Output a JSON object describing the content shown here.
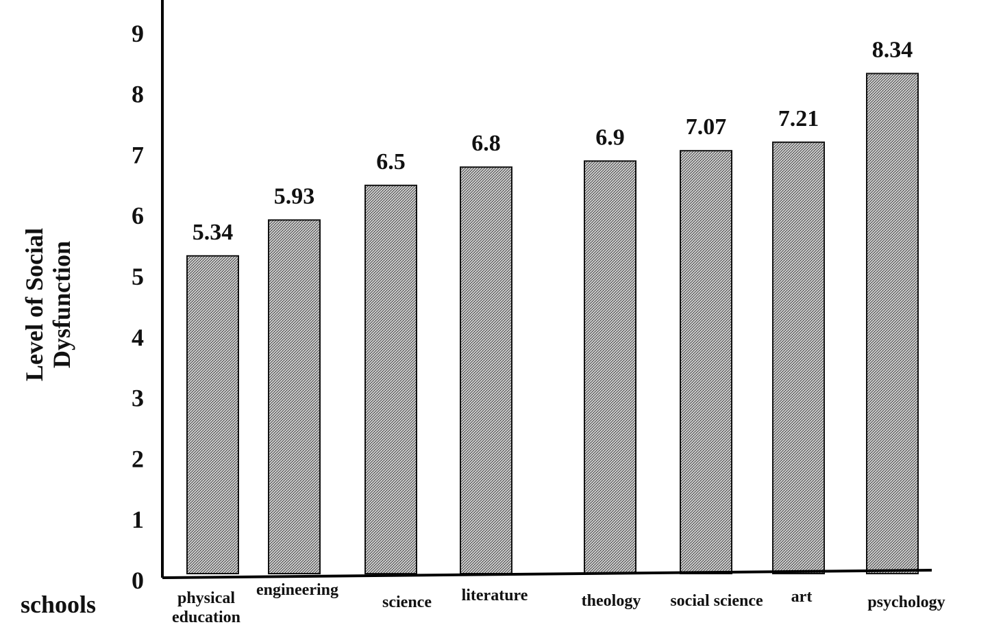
{
  "chart_data": {
    "type": "bar",
    "categories": [
      [
        "physical",
        "education"
      ],
      [
        "engineering"
      ],
      [
        "science"
      ],
      [
        "literature"
      ],
      [
        "theology"
      ],
      [
        "social science"
      ],
      [
        "art"
      ],
      [
        "psychology"
      ]
    ],
    "values": [
      5.34,
      5.93,
      6.5,
      6.8,
      6.9,
      7.07,
      7.21,
      8.34
    ],
    "value_labels": [
      "5.34",
      "5.93",
      "6.5",
      "6.8",
      "6.9",
      "7.07",
      "7.21",
      "8.34"
    ],
    "title": "",
    "xlabel": "schools",
    "ylabel": [
      "Level of Social",
      "Dysfunction"
    ],
    "ylim": [
      0,
      9
    ],
    "yticks": [
      "0",
      "1",
      "2",
      "3",
      "4",
      "5",
      "6",
      "7",
      "8",
      "9"
    ],
    "grid": false,
    "legend": "none",
    "colors": {
      "bar_fill": "#9a9a9a",
      "bar_stroke": "#111111",
      "axis": "#000000"
    }
  }
}
